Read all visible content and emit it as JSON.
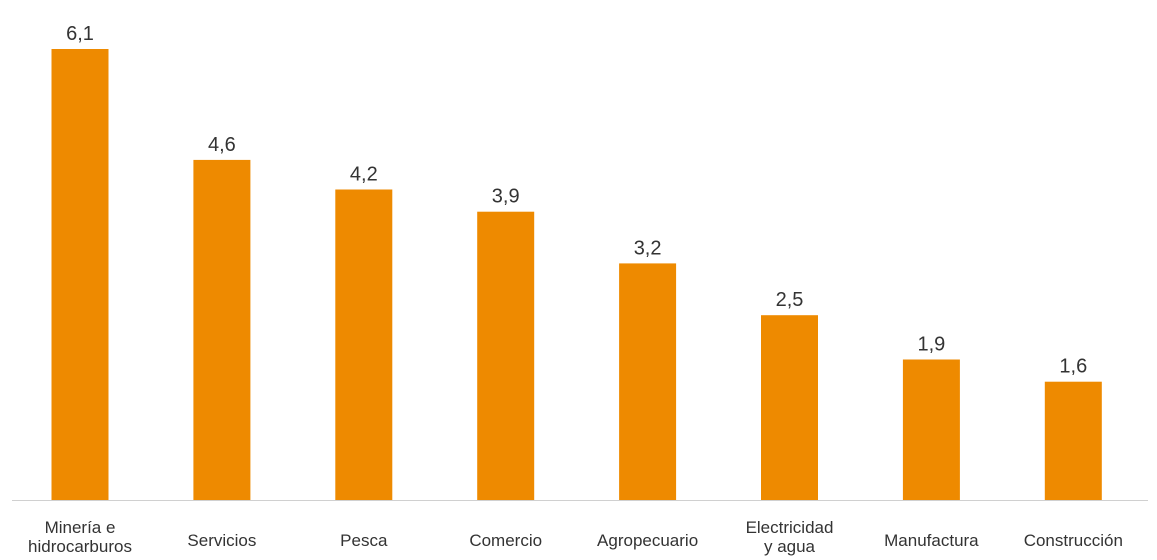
{
  "chart_data": {
    "type": "bar",
    "title": "",
    "xlabel": "",
    "ylabel": "",
    "categories": [
      [
        "Minería e",
        "hidrocarburos"
      ],
      [
        "Servicios"
      ],
      [
        "Pesca"
      ],
      [
        "Comercio"
      ],
      [
        "Agropecuario"
      ],
      [
        "Electricidad",
        "y agua"
      ],
      [
        "Manufactura"
      ],
      [
        "Construcción"
      ]
    ],
    "values": [
      6.1,
      4.6,
      4.2,
      3.9,
      3.2,
      2.5,
      1.9,
      1.6
    ],
    "value_labels": [
      "6,1",
      "4,6",
      "4,2",
      "3,9",
      "3,2",
      "2,5",
      "1,9",
      "1,6"
    ],
    "ylim": [
      0,
      6.1
    ],
    "grid": false,
    "legend": false,
    "bar_color": "#EE8A00",
    "axis_color": "#D0D0D0"
  }
}
